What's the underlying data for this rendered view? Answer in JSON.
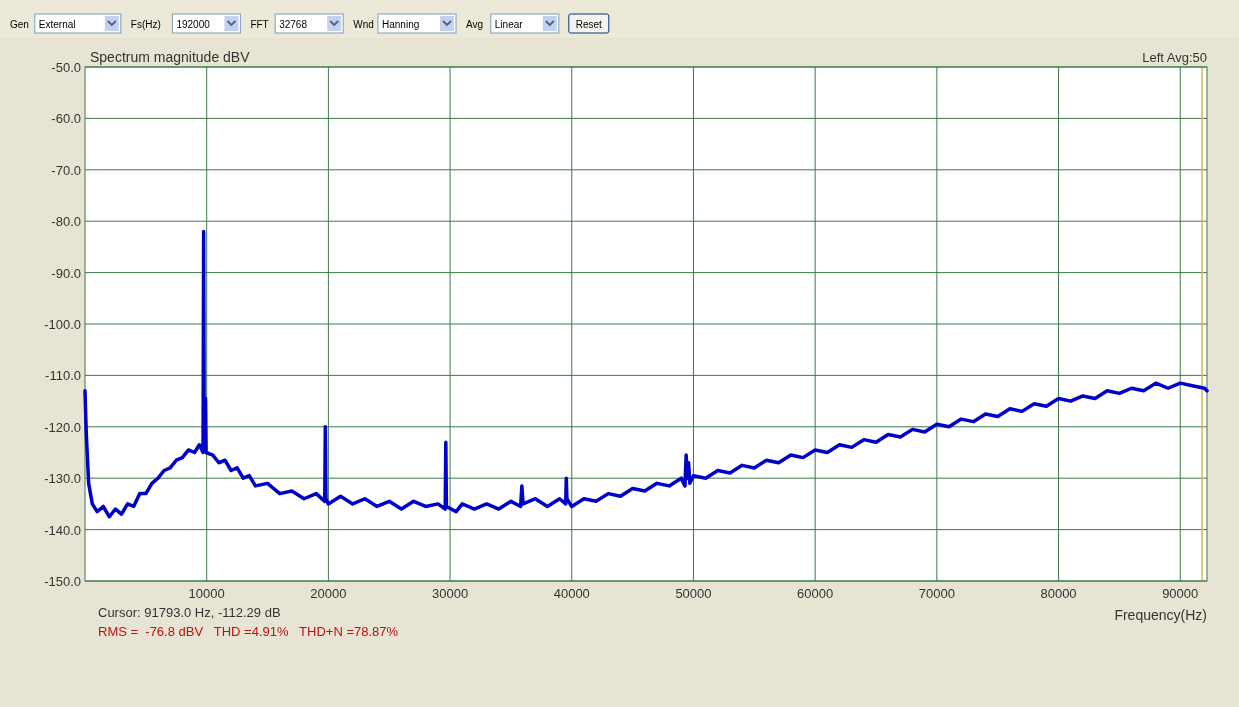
{
  "chart_data": {
    "type": "line",
    "ylabel": "Spectrum magnitude dBV",
    "xlabel": "Frequency(Hz)",
    "annotations": [
      "Left Avg:50",
      "Cursor: 91793.0 Hz, -112.29 dB",
      "RMS =  -76.8 dBV   THD =4.91%   THD+N =78.87%",
      "Gen",
      "External",
      "Fs(Hz)",
      "192000",
      "FFT",
      "32768",
      "Wnd",
      "Hanning",
      "Avg",
      "Linear",
      "Reset"
    ],
    "xlim": [
      0,
      92200
    ],
    "xticks": [
      10000,
      20000,
      30000,
      40000,
      50000,
      60000,
      70000,
      80000,
      90000
    ],
    "ylim": [
      -150,
      -50
    ],
    "yticks": [
      {
        "value": -150,
        "label": "-150.0"
      },
      {
        "value": -140,
        "label": "-140.0"
      },
      {
        "value": -130,
        "label": "-130.0"
      },
      {
        "value": -120,
        "label": "-120.0"
      },
      {
        "value": -110,
        "label": "-110.0"
      },
      {
        "value": -100,
        "label": "-100.0"
      },
      {
        "value": -90,
        "label": "-90.0"
      },
      {
        "value": -80,
        "label": "-80.0"
      },
      {
        "value": -70,
        "label": "-70.0"
      },
      {
        "value": -60,
        "label": "-60.0"
      },
      {
        "value": -50,
        "label": "-50.0"
      }
    ],
    "grid": true,
    "marker": "none",
    "line_style": "solid",
    "ref_lines": [
      {
        "axis": "x",
        "value": 91793,
        "color": "#d8b850"
      }
    ],
    "series": [
      {
        "color": "#0000c8",
        "x": [
          0,
          100,
          300,
          600,
          1000,
          1500,
          2000,
          2500,
          3000,
          3500,
          4000,
          4500,
          5000,
          5500,
          6000,
          6500,
          7000,
          7500,
          8000,
          8500,
          9000,
          9400,
          9700,
          9750,
          9800,
          9900,
          9950,
          10500,
          11000,
          11500,
          12000,
          12500,
          13000,
          13500,
          14000,
          15000,
          16000,
          17000,
          18000,
          19000,
          19700,
          19750,
          19800,
          20000,
          21000,
          22000,
          23000,
          24000,
          25000,
          26000,
          27000,
          28000,
          29000,
          29600,
          29650,
          29700,
          30500,
          31000,
          32000,
          33000,
          34000,
          35000,
          35800,
          35900,
          36000,
          37000,
          38000,
          39000,
          39500,
          39550,
          39600,
          40000,
          41000,
          42000,
          43000,
          44000,
          45000,
          46000,
          47000,
          48000,
          49000,
          49300,
          49400,
          49500,
          49600,
          49700,
          50000,
          51000,
          52000,
          53000,
          54000,
          55000,
          56000,
          57000,
          58000,
          59000,
          60000,
          61000,
          62000,
          63000,
          64000,
          65000,
          66000,
          67000,
          68000,
          69000,
          70000,
          71000,
          72000,
          73000,
          74000,
          75000,
          76000,
          77000,
          78000,
          79000,
          80000,
          81000,
          82000,
          83000,
          84000,
          85000,
          86000,
          87000,
          88000,
          89000,
          90000,
          91000,
          92000,
          92200
        ],
        "values": [
          -113,
          -121,
          -131,
          -135,
          -136.5,
          -135.5,
          -137.5,
          -136,
          -137,
          -135,
          -135.5,
          -133,
          -133,
          -131,
          -130,
          -128.5,
          -128,
          -126.5,
          -126,
          -124.5,
          -125,
          -123.5,
          -125,
          -82,
          -124.5,
          -114.5,
          -125,
          -125.5,
          -127,
          -126.5,
          -128.5,
          -128,
          -130,
          -129.5,
          -131.5,
          -131,
          -133,
          -132.5,
          -134,
          -133,
          -134.5,
          -120,
          -134,
          -135,
          -133.5,
          -135,
          -134,
          -135.5,
          -134.5,
          -136,
          -134.5,
          -135.5,
          -135,
          -136,
          -123,
          -135.5,
          -136.5,
          -135,
          -136,
          -135,
          -136,
          -134.5,
          -135.5,
          -131.5,
          -135,
          -134,
          -135.5,
          -134,
          -135,
          -130,
          -134,
          -135.5,
          -134,
          -134.5,
          -133,
          -133.5,
          -132,
          -132.5,
          -131,
          -131.5,
          -130,
          -131.5,
          -125.5,
          -130,
          -127,
          -131,
          -129.5,
          -130,
          -128.5,
          -129,
          -127.5,
          -128,
          -126.5,
          -127,
          -125.5,
          -126,
          -124.5,
          -125,
          -123.5,
          -124,
          -122.5,
          -123,
          -121.5,
          -122,
          -120.5,
          -121,
          -119.5,
          -120,
          -118.5,
          -119,
          -117.5,
          -118,
          -116.5,
          -117,
          -115.5,
          -116,
          -114.5,
          -115,
          -114,
          -114.5,
          -113,
          -113.5,
          -112.5,
          -113,
          -111.5,
          -112.5,
          -111.5,
          -112,
          -112.5,
          -113
        ]
      }
    ]
  }
}
